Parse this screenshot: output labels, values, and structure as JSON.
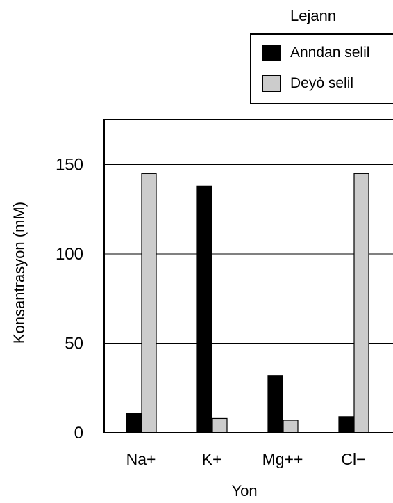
{
  "legend": {
    "title": "Lejann",
    "entries": [
      {
        "label": "Anndan selil",
        "color": "#000000"
      },
      {
        "label": "Deyò selil",
        "color": "#cccccc"
      }
    ]
  },
  "chart_data": {
    "type": "bar",
    "title": "",
    "xlabel": "Yon",
    "ylabel": "Konsantrasyon (mM)",
    "categories": [
      "Na+",
      "K+",
      "Mg++",
      "Cl−"
    ],
    "series": [
      {
        "name": "Anndan selil",
        "color": "#000000",
        "values": [
          11,
          138,
          32,
          9
        ]
      },
      {
        "name": "Deyò selil",
        "color": "#cccccc",
        "values": [
          145,
          8,
          7,
          145
        ]
      }
    ],
    "ylim": [
      0,
      175
    ],
    "yticks": [
      0,
      50,
      100,
      150
    ],
    "grid": true,
    "legend_position": "top-right"
  }
}
